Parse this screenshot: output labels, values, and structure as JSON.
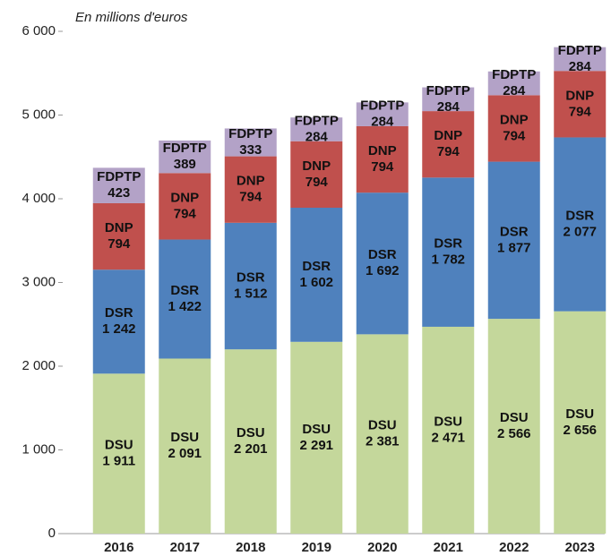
{
  "chart_data": {
    "type": "stacked-bar",
    "subtitle": "En millions d'euros",
    "categories": [
      "2016",
      "2017",
      "2018",
      "2019",
      "2020",
      "2021",
      "2022",
      "2023"
    ],
    "series": [
      {
        "name": "DSU",
        "color": "#c4d79b",
        "values": [
          1911,
          2091,
          2201,
          2291,
          2381,
          2471,
          2566,
          2656
        ],
        "value_labels": [
          "1 911",
          "2 091",
          "2 201",
          "2 291",
          "2 381",
          "2 471",
          "2 566",
          "2 656"
        ]
      },
      {
        "name": "DSR",
        "color": "#4f81bd",
        "values": [
          1242,
          1422,
          1512,
          1602,
          1692,
          1782,
          1877,
          2077
        ],
        "value_labels": [
          "1 242",
          "1 422",
          "1 512",
          "1 602",
          "1 692",
          "1 782",
          "1 877",
          "2 077"
        ]
      },
      {
        "name": "DNP",
        "color": "#c0504d",
        "values": [
          794,
          794,
          794,
          794,
          794,
          794,
          794,
          794
        ]
      },
      {
        "name": "FDPTP",
        "color": "#b3a2c7",
        "values": [
          423,
          389,
          333,
          284,
          284,
          284,
          284,
          284
        ]
      }
    ],
    "ylim": [
      0,
      6000
    ],
    "yticks": [
      0,
      {
        "value": 1000,
        "label": "1 000"
      },
      {
        "value": 2000,
        "label": "2 000"
      },
      {
        "value": 3000,
        "label": "3 000"
      },
      {
        "value": 4000,
        "label": "4 000"
      },
      {
        "value": 5000,
        "label": "5 000"
      },
      {
        "value": 6000,
        "label": "6 000"
      }
    ],
    "grid": false
  }
}
